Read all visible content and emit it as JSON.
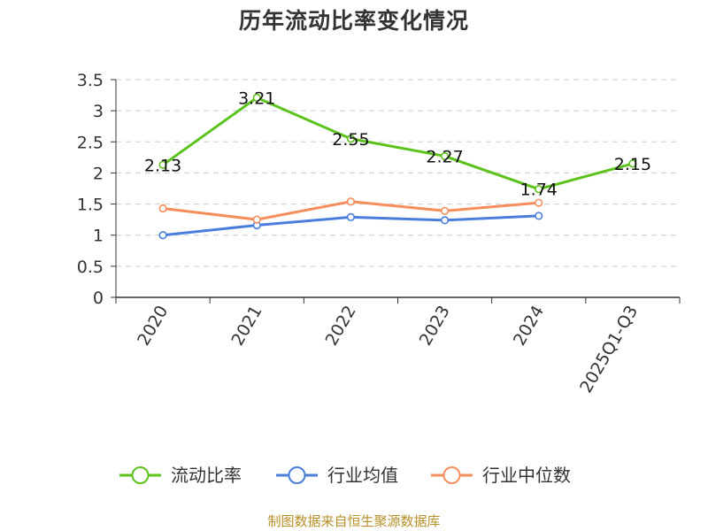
{
  "chart_data": {
    "type": "line",
    "title": "历年流动比率变化情况",
    "categories": [
      "2020",
      "2021",
      "2022",
      "2023",
      "2024",
      "2025Q1-Q3"
    ],
    "ylim": [
      0,
      3.5
    ],
    "yticks": [
      "0",
      "0.5",
      "1",
      "1.5",
      "2",
      "2.5",
      "3",
      "3.5"
    ],
    "grid": true,
    "legend_position": "bottom",
    "series": [
      {
        "name": "流动比率",
        "color": "#5cc21c",
        "values": [
          2.13,
          3.21,
          2.55,
          2.27,
          1.74,
          2.15
        ],
        "labels": [
          "2.13",
          "3.21",
          "2.55",
          "2.27",
          "1.74",
          "2.15"
        ]
      },
      {
        "name": "行业均值",
        "color": "#4a7edc",
        "values": [
          1.0,
          1.16,
          1.29,
          1.24,
          1.31,
          null
        ]
      },
      {
        "name": "行业中位数",
        "color": "#f58e5c",
        "values": [
          1.43,
          1.25,
          1.54,
          1.39,
          1.52,
          null
        ]
      }
    ]
  },
  "footer": {
    "source": "制图数据来自恒生聚源数据库"
  }
}
